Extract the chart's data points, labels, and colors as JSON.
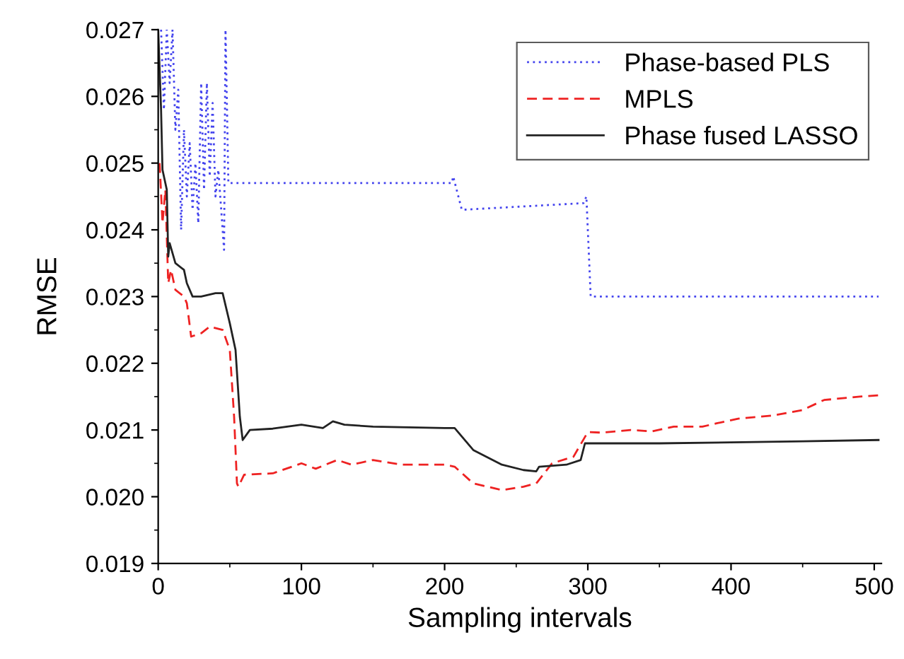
{
  "chart_data": {
    "type": "line",
    "xlabel": "Sampling intervals",
    "ylabel": "RMSE",
    "xlim": [
      0,
      505
    ],
    "xticks": [
      0,
      100,
      200,
      300,
      400,
      500
    ],
    "ylim": [
      0.019,
      0.027
    ],
    "yticks": [
      {
        "value": 0.019,
        "label": "0.019"
      },
      {
        "value": 0.02,
        "label": "0.020"
      },
      {
        "value": 0.021,
        "label": "0.021"
      },
      {
        "value": 0.022,
        "label": "0.022"
      },
      {
        "value": 0.023,
        "label": "0.023"
      },
      {
        "value": 0.024,
        "label": "0.024"
      },
      {
        "value": 0.025,
        "label": "0.025"
      },
      {
        "value": 0.026,
        "label": "0.026"
      },
      {
        "value": 0.027,
        "label": "0.027"
      }
    ],
    "grid": false,
    "legend": "top right",
    "marker": "none",
    "series": [
      {
        "name": "Phase-based PLS",
        "color": "#4444ee",
        "line_style": "dotted",
        "x": [
          2,
          4,
          6,
          8,
          10,
          12,
          14,
          16,
          18,
          20,
          22,
          24,
          26,
          28,
          30,
          32,
          34,
          36,
          38,
          40,
          42,
          44,
          46,
          47,
          49,
          205,
          206,
          212,
          297,
          299,
          302,
          503
        ],
        "values": [
          0.027,
          0.0258,
          0.027,
          0.0262,
          0.027,
          0.0255,
          0.0261,
          0.024,
          0.0255,
          0.0245,
          0.0253,
          0.0243,
          0.025,
          0.0241,
          0.0262,
          0.0246,
          0.0262,
          0.0248,
          0.0259,
          0.0245,
          0.0249,
          0.0243,
          0.0237,
          0.027,
          0.0247,
          0.0247,
          0.0248,
          0.0243,
          0.0244,
          0.0245,
          0.023,
          0.023
        ]
      },
      {
        "name": "MPLS",
        "color": "#ee2222",
        "line_style": "dashed",
        "x": [
          1,
          3,
          5,
          7,
          9,
          12,
          18,
          20,
          23,
          30,
          36,
          45,
          50,
          53,
          55,
          56,
          60,
          80,
          100,
          110,
          125,
          135,
          150,
          170,
          200,
          207,
          220,
          240,
          255,
          264,
          275,
          290,
          300,
          310,
          330,
          345,
          360,
          380,
          390,
          405,
          430,
          450,
          465,
          490,
          503
        ],
        "values": [
          0.025,
          0.0241,
          0.0246,
          0.0232,
          0.0234,
          0.0231,
          0.023,
          0.0229,
          0.0224,
          0.02245,
          0.02255,
          0.0225,
          0.0222,
          0.0212,
          0.0202,
          0.02015,
          0.02033,
          0.02035,
          0.0205,
          0.02042,
          0.02055,
          0.02048,
          0.02055,
          0.02048,
          0.02048,
          0.02045,
          0.0202,
          0.0201,
          0.02015,
          0.0202,
          0.0205,
          0.0206,
          0.02097,
          0.02096,
          0.021,
          0.02098,
          0.02105,
          0.02105,
          0.0211,
          0.02117,
          0.02122,
          0.0213,
          0.02145,
          0.0215,
          0.02152
        ]
      },
      {
        "name": "Phase fused LASSO",
        "color": "#222222",
        "line_style": "solid",
        "x": [
          0,
          2,
          3,
          6,
          7,
          8,
          12,
          18,
          20,
          24,
          30,
          40,
          45,
          50,
          54,
          57,
          59,
          64,
          80,
          100,
          115,
          122,
          130,
          150,
          200,
          207,
          220,
          240,
          255,
          264,
          266,
          285,
          295,
          298,
          350,
          450,
          503
        ],
        "values": [
          0.027,
          0.0258,
          0.0249,
          0.0246,
          0.0236,
          0.0238,
          0.0235,
          0.0234,
          0.0232,
          0.023,
          0.023,
          0.02305,
          0.02305,
          0.0226,
          0.0222,
          0.0212,
          0.02085,
          0.021,
          0.02102,
          0.02108,
          0.02103,
          0.02113,
          0.02108,
          0.02105,
          0.02103,
          0.02103,
          0.0207,
          0.02048,
          0.0204,
          0.02038,
          0.02045,
          0.02048,
          0.02055,
          0.0208,
          0.0208,
          0.02083,
          0.02085
        ]
      }
    ]
  }
}
